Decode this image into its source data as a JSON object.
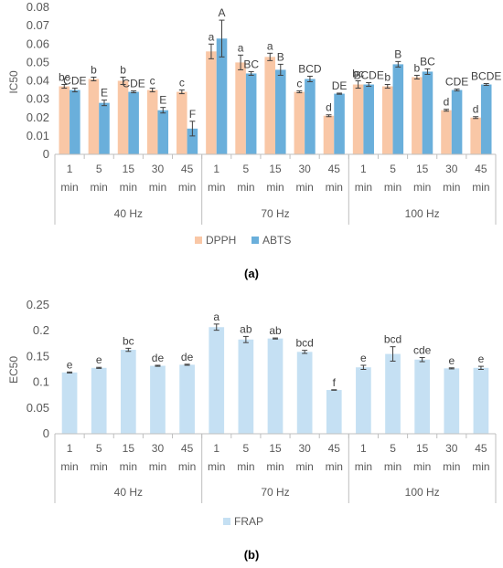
{
  "chart_data": [
    {
      "type": "bar",
      "panel_label": "(a)",
      "ylabel": "IC50",
      "ylim": [
        0,
        0.08
      ],
      "y_ticks": [
        "0",
        "0.01",
        "0.02",
        "0.03",
        "0.04",
        "0.05",
        "0.06",
        "0.07",
        "0.08"
      ],
      "grid": false,
      "legend_position": "bottom",
      "groups": [
        {
          "label": "40 Hz",
          "categories": [
            "1 min",
            "5 min",
            "15 min",
            "30 min",
            "45 min"
          ]
        },
        {
          "label": "70 Hz",
          "categories": [
            "1 min",
            "5 min",
            "15 min",
            "30 min",
            "45 min"
          ]
        },
        {
          "label": "100 Hz",
          "categories": [
            "1 min",
            "5 min",
            "15 min",
            "30 min",
            "45 min"
          ]
        }
      ],
      "series": [
        {
          "name": "DPPH",
          "color": "#f9c7a6",
          "values": [
            0.037,
            0.041,
            0.04,
            0.035,
            0.034,
            0.056,
            0.05,
            0.053,
            0.034,
            0.021,
            0.038,
            0.037,
            0.042,
            0.024,
            0.02
          ],
          "errors": [
            0.001,
            0.001,
            0.002,
            0.001,
            0.001,
            0.004,
            0.004,
            0.002,
            0.0005,
            0.0005,
            0.002,
            0.001,
            0.001,
            0.0005,
            0.0005
          ],
          "labels": [
            "bc",
            "b",
            "b",
            "c",
            "c",
            "a",
            "a",
            "a",
            "c",
            "d",
            "bc",
            "b",
            "b",
            "d",
            "d"
          ]
        },
        {
          "name": "ABTS",
          "color": "#6aafdb",
          "values": [
            0.035,
            0.028,
            0.034,
            0.024,
            0.014,
            0.063,
            0.044,
            0.046,
            0.041,
            0.033,
            0.038,
            0.049,
            0.045,
            0.035,
            0.038
          ],
          "errors": [
            0.001,
            0.0015,
            0.0005,
            0.0015,
            0.004,
            0.01,
            0.001,
            0.003,
            0.0015,
            0.0003,
            0.001,
            0.0015,
            0.0015,
            0.0005,
            0.0005
          ],
          "labels": [
            "CDE",
            "E",
            "CDE",
            "E",
            "F",
            "A",
            "BC",
            "B",
            "BCD",
            "DE",
            "BCDE",
            "B",
            "BC",
            "CDE",
            "BCDE"
          ]
        }
      ]
    },
    {
      "type": "bar",
      "panel_label": "(b)",
      "ylabel": "EC50",
      "ylim": [
        0,
        0.25
      ],
      "y_ticks": [
        "0",
        "0.05",
        "0.1",
        "0.15",
        "0.2",
        "0.25"
      ],
      "grid": false,
      "legend_position": "bottom",
      "groups": [
        {
          "label": "40 Hz",
          "categories": [
            "1 min",
            "5 min",
            "15 min",
            "30 min",
            "45 min"
          ]
        },
        {
          "label": "70 Hz",
          "categories": [
            "1 min",
            "5 min",
            "15 min",
            "30 min",
            "45 min"
          ]
        },
        {
          "label": "100 Hz",
          "categories": [
            "1 min",
            "5 min",
            "15 min",
            "30 min",
            "45 min"
          ]
        }
      ],
      "series": [
        {
          "name": "FRAP",
          "color": "#c5e0f3",
          "values": [
            0.119,
            0.128,
            0.163,
            0.132,
            0.134,
            0.207,
            0.183,
            0.185,
            0.159,
            0.085,
            0.129,
            0.155,
            0.144,
            0.127,
            0.128
          ],
          "errors": [
            0.001,
            0.001,
            0.003,
            0.001,
            0.001,
            0.006,
            0.006,
            0.001,
            0.003,
            0.0005,
            0.004,
            0.014,
            0.004,
            0.001,
            0.003
          ],
          "labels": [
            "e",
            "e",
            "bc",
            "de",
            "de",
            "a",
            "ab",
            "ab",
            "bcd",
            "f",
            "e",
            "bcd",
            "cde",
            "e",
            "e"
          ]
        }
      ]
    }
  ]
}
